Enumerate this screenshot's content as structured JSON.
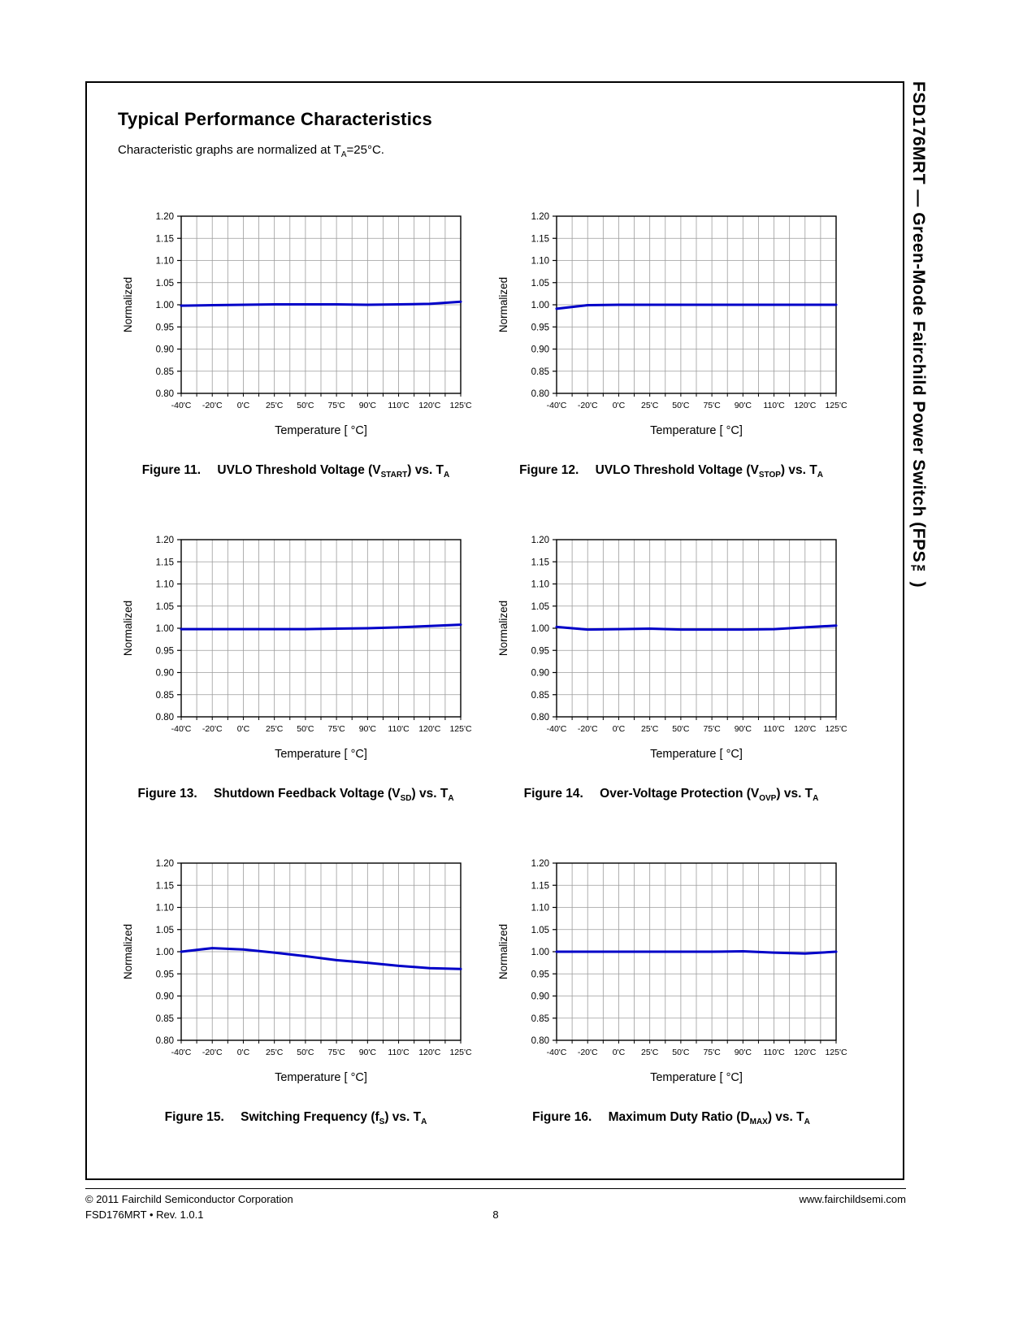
{
  "page": {
    "title": "Typical Performance Characteristics",
    "subtitle_parts": [
      {
        "t": "Characteristic graphs are normalized at T"
      },
      {
        "t": "A",
        "sub": true
      },
      {
        "t": "=25°C."
      }
    ]
  },
  "sidebar": {
    "title": "FSD176MRT — Green-Mode Fairchild Power Switch (FPS™)"
  },
  "footer": {
    "copyright": "© 2011 Fairchild Semiconductor Corporation",
    "revision": "FSD176MRT  •  Rev. 1.0.1",
    "page_number": "8",
    "website": "www.fairchildsemi.com"
  },
  "axis": {
    "ylabel": "Normalized",
    "xlabel": "Temperature [ °C]",
    "ylim": [
      0.8,
      1.2
    ],
    "ytick_labels": [
      "1.20",
      "1.15",
      "1.10",
      "1.05",
      "1.00",
      "0.95",
      "0.90",
      "0.85",
      "0.80"
    ],
    "categories": [
      "-40'C",
      "-20'C",
      "0'C",
      "25'C",
      "50'C",
      "75'C",
      "90'C",
      "110'C",
      "120'C",
      "125'C"
    ],
    "x_values": [
      -40,
      -20,
      0,
      25,
      50,
      75,
      90,
      110,
      120,
      125
    ],
    "line_color": "#0000c8",
    "grid": "on"
  },
  "chart_data": [
    {
      "type": "line",
      "figure_label": "Figure 11.",
      "caption_text": "UVLO Threshold Voltage (VSTART) vs. TA",
      "caption_parts": [
        {
          "t": "UVLO Threshold Voltage (V"
        },
        {
          "t": "START",
          "sub": true
        },
        {
          "t": ") vs. T"
        },
        {
          "t": "A",
          "sub": true
        }
      ],
      "values": [
        0.998,
        0.999,
        1.0,
        1.001,
        1.001,
        1.001,
        1.0,
        1.001,
        1.002,
        1.007
      ]
    },
    {
      "type": "line",
      "figure_label": "Figure 12.",
      "caption_text": "UVLO Threshold Voltage (VSTOP) vs. TA",
      "caption_parts": [
        {
          "t": "UVLO Threshold Voltage (V"
        },
        {
          "t": "STOP",
          "sub": true
        },
        {
          "t": ") vs. T"
        },
        {
          "t": "A",
          "sub": true
        }
      ],
      "values": [
        0.991,
        0.999,
        1.0,
        1.0,
        1.0,
        1.0,
        1.0,
        1.0,
        1.0,
        1.0
      ]
    },
    {
      "type": "line",
      "figure_label": "Figure 13.",
      "caption_text": "Shutdown Feedback Voltage (VSD) vs. TA",
      "caption_parts": [
        {
          "t": "Shutdown Feedback Voltage (V"
        },
        {
          "t": "SD",
          "sub": true
        },
        {
          "t": ") vs. T"
        },
        {
          "t": "A",
          "sub": true
        }
      ],
      "values": [
        0.998,
        0.998,
        0.998,
        0.998,
        0.998,
        0.999,
        1.0,
        1.002,
        1.005,
        1.008
      ]
    },
    {
      "type": "line",
      "figure_label": "Figure 14.",
      "caption_text": "Over-Voltage Protection (VOVP) vs. TA",
      "caption_parts": [
        {
          "t": "Over-Voltage Protection (V"
        },
        {
          "t": "OVP",
          "sub": true
        },
        {
          "t": ") vs. T"
        },
        {
          "t": "A",
          "sub": true
        }
      ],
      "values": [
        1.003,
        0.997,
        0.998,
        0.999,
        0.997,
        0.997,
        0.997,
        0.998,
        1.002,
        1.006
      ]
    },
    {
      "type": "line",
      "figure_label": "Figure 15.",
      "caption_text": "Switching Frequency (fS) vs. TA",
      "caption_parts": [
        {
          "t": "Switching Frequency (f"
        },
        {
          "t": "S",
          "sub": true
        },
        {
          "t": ") vs. T"
        },
        {
          "t": "A",
          "sub": true
        }
      ],
      "values": [
        1.0,
        1.008,
        1.005,
        0.998,
        0.99,
        0.981,
        0.975,
        0.968,
        0.963,
        0.961
      ]
    },
    {
      "type": "line",
      "figure_label": "Figure 16.",
      "caption_text": "Maximum Duty Ratio (DMAX) vs. TA",
      "caption_parts": [
        {
          "t": "Maximum Duty Ratio (D"
        },
        {
          "t": "MAX",
          "sub": true
        },
        {
          "t": ") vs. T"
        },
        {
          "t": "A",
          "sub": true
        }
      ],
      "values": [
        1.0,
        1.0,
        1.0,
        1.0,
        1.0,
        1.0,
        1.001,
        0.998,
        0.996,
        1.0
      ]
    }
  ]
}
